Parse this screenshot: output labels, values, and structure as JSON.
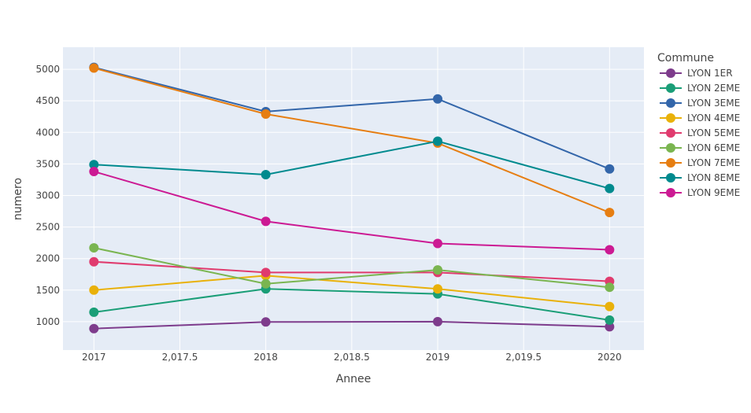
{
  "chart_data": {
    "type": "line",
    "title": "",
    "xlabel": "Annee",
    "ylabel": "numero",
    "x": [
      2017,
      2018,
      2019,
      2020
    ],
    "xlim": [
      2016.82,
      2020.2
    ],
    "ylim": [
      550,
      5350
    ],
    "xticks": [
      2017,
      2017.5,
      2018,
      2018.5,
      2019,
      2019.5,
      2020
    ],
    "xtick_labels": [
      "2017",
      "2,017.5",
      "2018",
      "2,018.5",
      "2019",
      "2,019.5",
      "2020"
    ],
    "yticks": [
      1000,
      1500,
      2000,
      2500,
      3000,
      3500,
      4000,
      4500,
      5000
    ],
    "ytick_labels": [
      "1000",
      "1500",
      "2000",
      "2500",
      "3000",
      "3500",
      "4000",
      "4500",
      "5000"
    ],
    "grid": true,
    "background": "#e5ecf6",
    "legend": {
      "title": "Commune",
      "placement": "right"
    },
    "series": [
      {
        "name": "LYON 1ER",
        "color": "#7e3c8c",
        "values": [
          890,
          995,
          1000,
          920
        ]
      },
      {
        "name": "LYON 2EME",
        "color": "#1a9e77",
        "values": [
          1150,
          1520,
          1440,
          1025
        ]
      },
      {
        "name": "LYON 3EME",
        "color": "#3366aa",
        "values": [
          5030,
          4330,
          4530,
          3420
        ]
      },
      {
        "name": "LYON 4EME",
        "color": "#e9b10a",
        "values": [
          1500,
          1730,
          1520,
          1240
        ]
      },
      {
        "name": "LYON 5EME",
        "color": "#e03b6e",
        "values": [
          1950,
          1780,
          1780,
          1640
        ]
      },
      {
        "name": "LYON 6EME",
        "color": "#7ab550",
        "values": [
          2170,
          1600,
          1820,
          1545
        ]
      },
      {
        "name": "LYON 7EME",
        "color": "#e67e12",
        "values": [
          5020,
          4290,
          3830,
          2730
        ]
      },
      {
        "name": "LYON 8EME",
        "color": "#008a8e",
        "values": [
          3490,
          3330,
          3860,
          3110
        ]
      },
      {
        "name": "LYON 9EME",
        "color": "#cc1a93",
        "values": [
          3380,
          2590,
          2240,
          2140
        ]
      }
    ]
  }
}
